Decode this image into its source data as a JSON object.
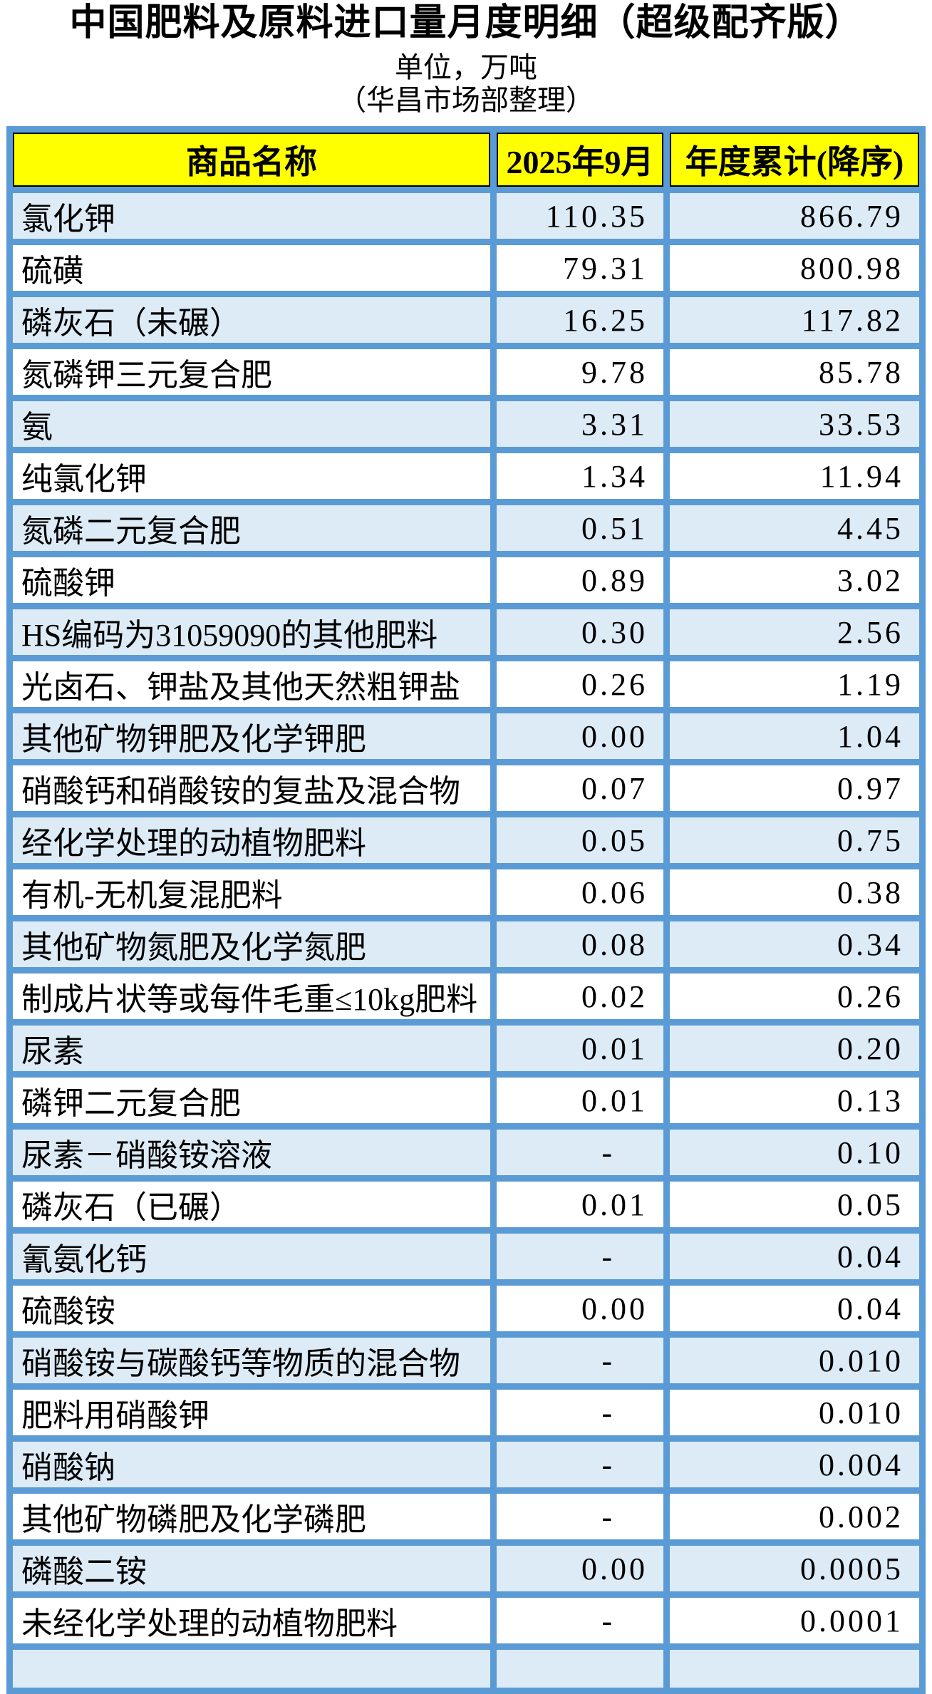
{
  "page": {
    "title": "中国肥料及原料进口量月度明细（超级配齐版）",
    "unit_note": "单位，万吨",
    "source_note": "（华昌市场部整理）"
  },
  "colors": {
    "header_bg": "#FFFF00",
    "grid_blue": "#5B9BD5",
    "row_alt_bg": "#DDEBF7",
    "row_bg": "#FFFFFF",
    "header_border": "#000000",
    "text": "#000000"
  },
  "chart_data": {
    "type": "table",
    "title": "中国肥料及原料进口量月度明细（超级配齐版）",
    "unit": "万吨",
    "columns": [
      "商品名称",
      "2025年9月",
      "年度累计(降序)"
    ],
    "sort_note": "年度累计列降序排列",
    "rows": [
      [
        "氯化钾",
        "110.35",
        "866.79"
      ],
      [
        "硫磺",
        "79.31",
        "800.98"
      ],
      [
        "磷灰石（未碾）",
        "16.25",
        "117.82"
      ],
      [
        "氮磷钾三元复合肥",
        "9.78",
        "85.78"
      ],
      [
        "氨",
        "3.31",
        "33.53"
      ],
      [
        "纯氯化钾",
        "1.34",
        "11.94"
      ],
      [
        "氮磷二元复合肥",
        "0.51",
        "4.45"
      ],
      [
        "硫酸钾",
        "0.89",
        "3.02"
      ],
      [
        "HS编码为31059090的其他肥料",
        "0.30",
        "2.56"
      ],
      [
        "光卤石、钾盐及其他天然粗钾盐",
        "0.26",
        "1.19"
      ],
      [
        "其他矿物钾肥及化学钾肥",
        "0.00",
        "1.04"
      ],
      [
        "硝酸钙和硝酸铵的复盐及混合物",
        "0.07",
        "0.97"
      ],
      [
        "经化学处理的动植物肥料",
        "0.05",
        "0.75"
      ],
      [
        "有机-无机复混肥料",
        "0.06",
        "0.38"
      ],
      [
        "其他矿物氮肥及化学氮肥",
        "0.08",
        "0.34"
      ],
      [
        "制成片状等或每件毛重≤10kg肥料",
        "0.02",
        "0.26"
      ],
      [
        "尿素",
        "0.01",
        "0.20"
      ],
      [
        "磷钾二元复合肥",
        "0.01",
        "0.13"
      ],
      [
        "尿素－硝酸铵溶液",
        "-",
        "0.10"
      ],
      [
        "磷灰石（已碾）",
        "0.01",
        "0.05"
      ],
      [
        "氰氨化钙",
        "-",
        "0.04"
      ],
      [
        "硫酸铵",
        "0.00",
        "0.04"
      ],
      [
        "硝酸铵与碳酸钙等物质的混合物",
        "-",
        "0.010"
      ],
      [
        "肥料用硝酸钾",
        "-",
        "0.010"
      ],
      [
        "硝酸钠",
        "-",
        "0.004"
      ],
      [
        "其他矿物磷肥及化学磷肥",
        "-",
        "0.002"
      ],
      [
        "磷酸二铵",
        "0.00",
        "0.0005"
      ],
      [
        "未经化学处理的动植物肥料",
        "-",
        "0.0001"
      ]
    ]
  }
}
